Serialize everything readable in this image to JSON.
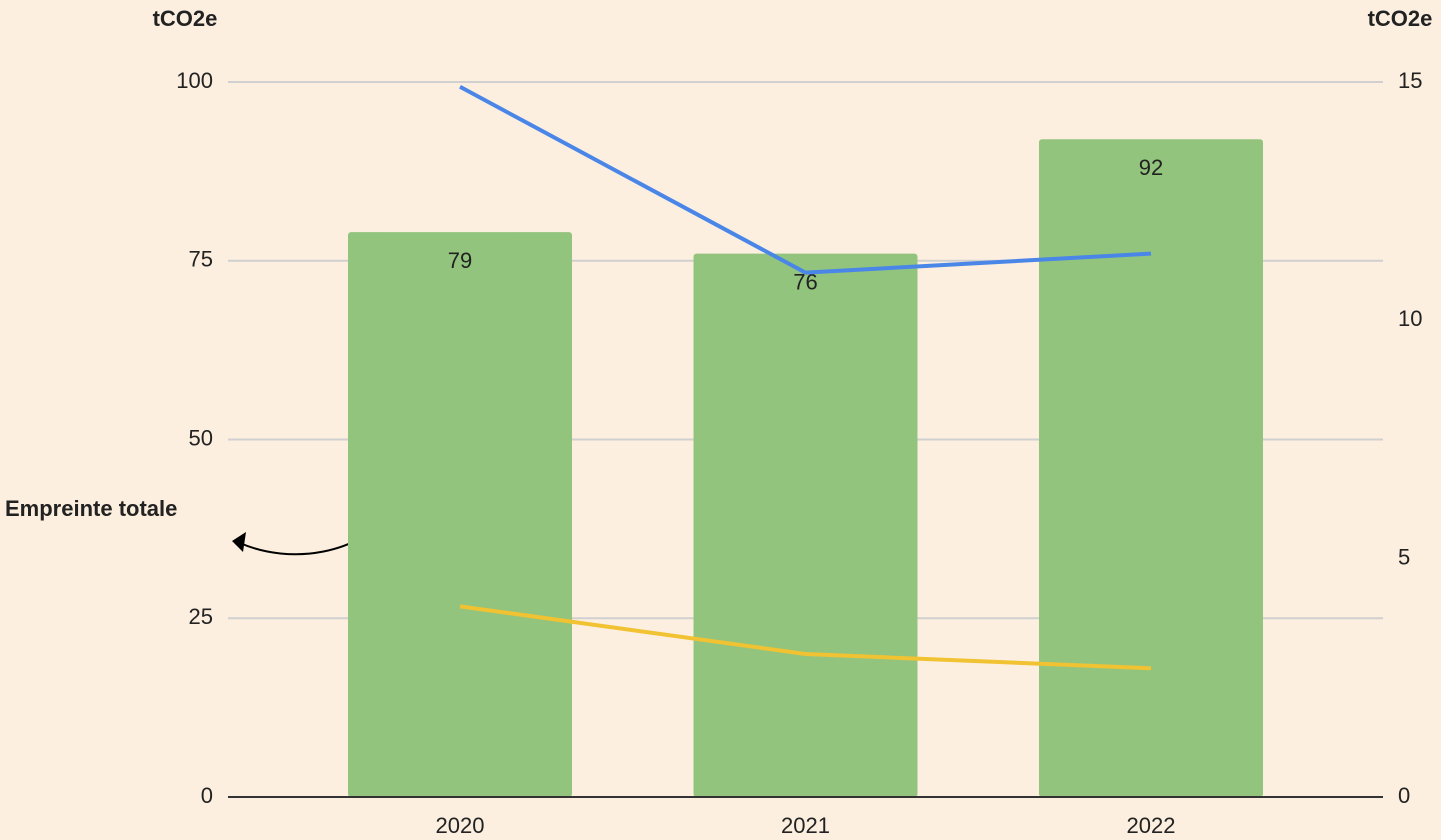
{
  "chart_data": {
    "type": "bar",
    "categories": [
      "2020",
      "2021",
      "2022"
    ],
    "series": [
      {
        "type": "bar",
        "color": "#93c47d",
        "values": [
          79,
          76,
          92
        ]
      },
      {
        "type": "line",
        "axis": "y2",
        "color": "#4a86e8",
        "values": [
          14.9,
          11,
          11.4
        ]
      },
      {
        "type": "line",
        "axis": "y2",
        "color": "#f1c232",
        "values": [
          4,
          3,
          2.7
        ]
      }
    ],
    "ylim": [
      0,
      100
    ],
    "yticks": [
      0,
      25,
      50,
      75,
      100
    ],
    "y2lim": [
      0,
      15
    ],
    "y2ticks": [
      0,
      5,
      10,
      15
    ],
    "y_label": "tCO2e",
    "y2_label": "tCO2e",
    "grid": true,
    "annotation": "Empreinte totale"
  }
}
